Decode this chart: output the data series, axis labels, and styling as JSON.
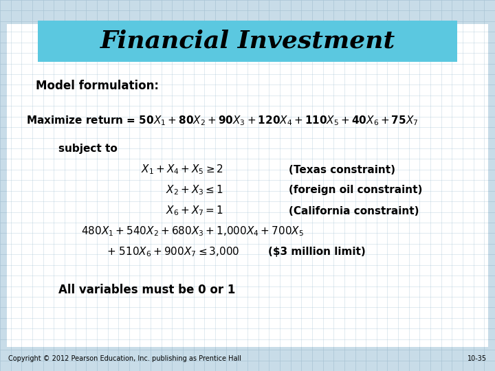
{
  "title": "Financial Investment",
  "title_bg_color": "#5BC8E0",
  "bg_color": "#C8DCE8",
  "grid_color": "#A8C4D4",
  "text_color": "#000000",
  "footer_left": "Copyright © 2012 Pearson Education, Inc. publishing as Prentice Hall",
  "footer_right": "10-35",
  "white_bg": "#FFFFFF"
}
